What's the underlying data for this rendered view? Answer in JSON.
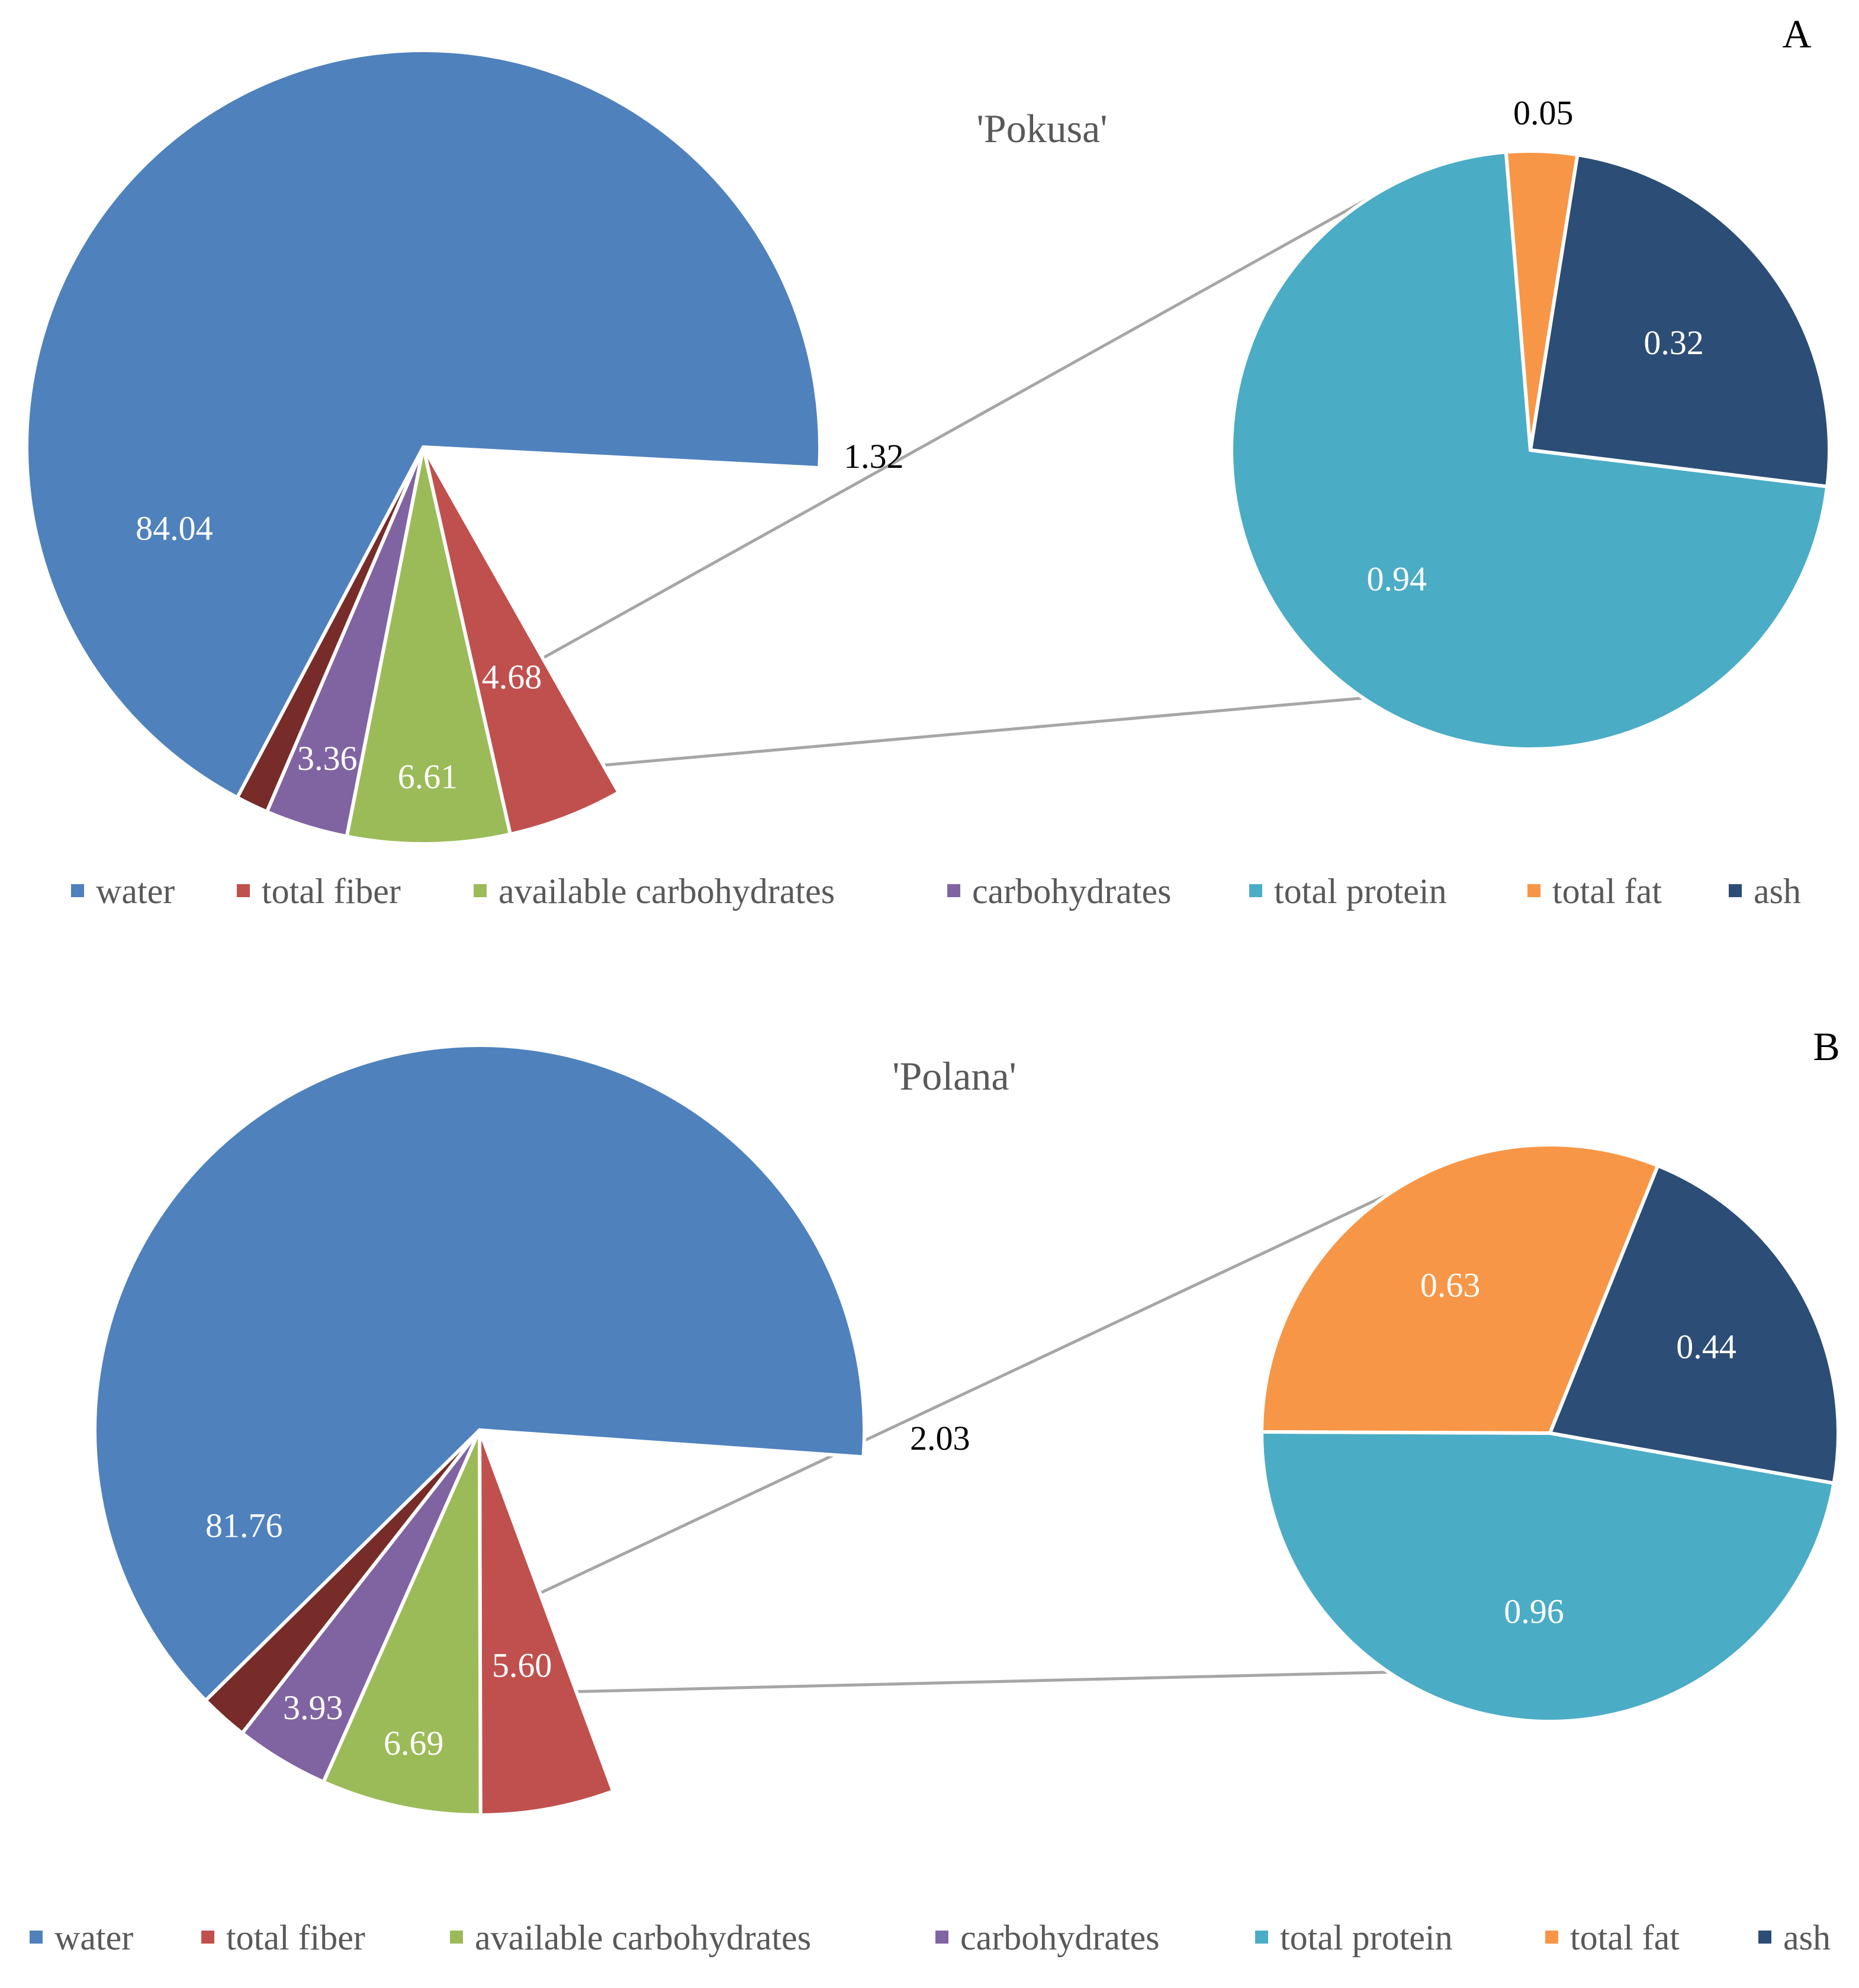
{
  "colors": {
    "water": "#4F81BD",
    "total_fiber": "#C0504D",
    "available_carbohydrates": "#9BBB59",
    "carbohydrates": "#8064A2",
    "other": "#772C2A",
    "total_protein": "#4BACC6",
    "total_fat": "#F79646",
    "ash": "#2C4D75",
    "connector": "#A6A6A6",
    "label_light": "#FFFFFF",
    "label_dark": "#000000"
  },
  "chart_data": [
    {
      "type": "pie",
      "panel": "A",
      "title": "'Pokusa'",
      "main_pie": {
        "series": [
          {
            "key": "water",
            "name": "water",
            "value": 84.04,
            "label": "84.04"
          },
          {
            "key": "total_fiber",
            "name": "total fiber",
            "value": 4.68,
            "label": "4.68"
          },
          {
            "key": "available_carbohydrates",
            "name": "available carbohydrates",
            "value": 6.61,
            "label": "6.61"
          },
          {
            "key": "carbohydrates",
            "name": "carbohydrates",
            "value": 3.36,
            "label": "3.36"
          },
          {
            "key": "other",
            "name": "total protein + total fat + ash",
            "value": 1.32,
            "label": "1.32"
          }
        ]
      },
      "secondary_pie": {
        "breakdown_of": "1.32",
        "series": [
          {
            "key": "total_protein",
            "name": "total protein",
            "value": 0.94,
            "label": "0.94"
          },
          {
            "key": "total_fat",
            "name": "total fat",
            "value": 0.05,
            "label": "0.05"
          },
          {
            "key": "ash",
            "name": "ash",
            "value": 0.32,
            "label": "0.32"
          }
        ]
      },
      "legend": [
        {
          "key": "water",
          "label": "water"
        },
        {
          "key": "total_fiber",
          "label": "total fiber"
        },
        {
          "key": "available_carbohydrates",
          "label": "available carbohydrates"
        },
        {
          "key": "carbohydrates",
          "label": "carbohydrates"
        },
        {
          "key": "total_protein",
          "label": "total protein"
        },
        {
          "key": "total_fat",
          "label": "total fat"
        },
        {
          "key": "ash",
          "label": "ash"
        }
      ]
    },
    {
      "type": "pie",
      "panel": "B",
      "title": "'Polana'",
      "main_pie": {
        "series": [
          {
            "key": "water",
            "name": "water",
            "value": 81.76,
            "label": "81.76"
          },
          {
            "key": "total_fiber",
            "name": "total fiber",
            "value": 5.6,
            "label": "5.60"
          },
          {
            "key": "available_carbohydrates",
            "name": "available carbohydrates",
            "value": 6.69,
            "label": "6.69"
          },
          {
            "key": "carbohydrates",
            "name": "carbohydrates",
            "value": 3.93,
            "label": "3.93"
          },
          {
            "key": "other",
            "name": "total protein + total fat + ash",
            "value": 2.03,
            "label": "2.03"
          }
        ]
      },
      "secondary_pie": {
        "breakdown_of": "2.03",
        "series": [
          {
            "key": "total_protein",
            "name": "total protein",
            "value": 0.96,
            "label": "0.96"
          },
          {
            "key": "total_fat",
            "name": "total fat",
            "value": 0.63,
            "label": "0.63"
          },
          {
            "key": "ash",
            "name": "ash",
            "value": 0.44,
            "label": "0.44"
          }
        ]
      },
      "legend": [
        {
          "key": "water",
          "label": "water"
        },
        {
          "key": "total_fiber",
          "label": "total fiber"
        },
        {
          "key": "available_carbohydrates",
          "label": "available carbohydrates"
        },
        {
          "key": "carbohydrates",
          "label": "carbohydrates"
        },
        {
          "key": "total_protein",
          "label": "total protein"
        },
        {
          "key": "total_fat",
          "label": "total fat"
        },
        {
          "key": "ash",
          "label": "ash"
        }
      ]
    }
  ]
}
